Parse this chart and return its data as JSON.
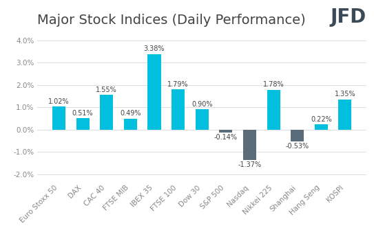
{
  "title": "Major Stock Indices (Daily Performance)",
  "categories": [
    "Euro Stoxx 50",
    "DAX",
    "CAC 40",
    "FTSE MIB",
    "IBEX 35",
    "FTSE 100",
    "Dow 30",
    "S&P 500",
    "Nasdaq",
    "Nikkei 225",
    "Shanghai",
    "Hang Seng",
    "KOSPI"
  ],
  "values": [
    1.02,
    0.51,
    1.55,
    0.49,
    3.38,
    1.79,
    0.9,
    -0.14,
    -1.37,
    1.78,
    -0.53,
    0.22,
    1.35
  ],
  "labels": [
    "1.02%",
    "0.51%",
    "1.55%",
    "0.49%",
    "3.38%",
    "1.79%",
    "0.90%",
    "-0.14%",
    "-1.37%",
    "1.78%",
    "-0.53%",
    "0.22%",
    "1.35%"
  ],
  "bar_color_positive": "#00BFDF",
  "bar_color_negative": "#5A6B7A",
  "background_color": "#FFFFFF",
  "grid_color": "#DDDDDD",
  "title_color": "#444444",
  "label_color": "#444444",
  "tick_color": "#888888",
  "jfd_color": "#3C4A57",
  "ylim": [
    -2.3,
    4.4
  ],
  "yticks": [
    -2.0,
    -1.0,
    0.0,
    1.0,
    2.0,
    3.0,
    4.0
  ],
  "ytick_labels": [
    "-2.0%",
    "-1.0%",
    "0.0%",
    "1.0%",
    "2.0%",
    "3.0%",
    "4.0%"
  ],
  "title_fontsize": 14,
  "label_fontsize": 7,
  "tick_fontsize": 7.5,
  "bar_width": 0.55
}
